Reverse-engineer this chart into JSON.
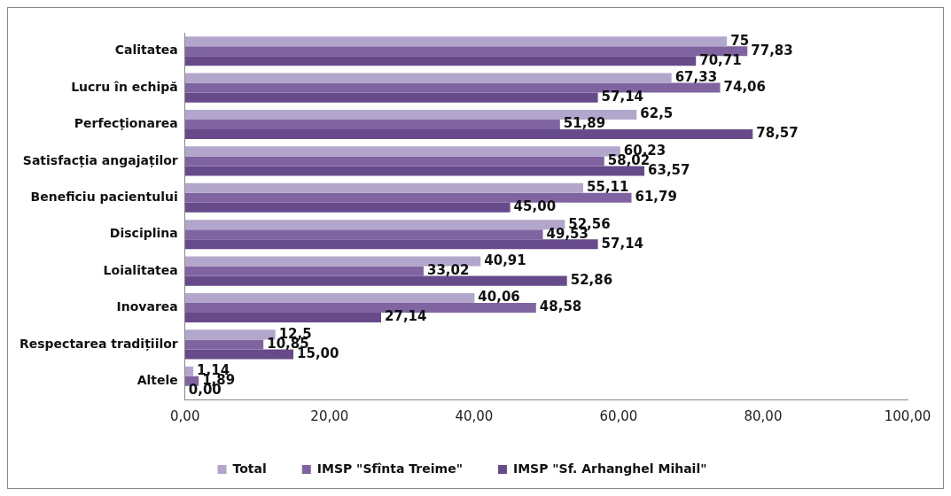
{
  "chart_data": {
    "type": "bar",
    "orientation": "horizontal",
    "categories": [
      "Calitatea",
      "Lucru în echipă",
      "Perfecționarea",
      "Satisfacția angajaților",
      "Beneficiu pacientului",
      "Disciplina",
      "Loialitatea",
      "Inovarea",
      "Respectarea tradițiilor",
      "Altele"
    ],
    "series": [
      {
        "name": "Total",
        "color": "#b3a6cc",
        "values": [
          75,
          67.33,
          62.5,
          60.23,
          55.11,
          52.56,
          40.91,
          40.06,
          12.5,
          1.14
        ],
        "value_labels": [
          "75",
          "67,33",
          "62,5",
          "60,23",
          "55,11",
          "52,56",
          "40,91",
          "40,06",
          "12,5",
          "1,14"
        ]
      },
      {
        "name": "IMSP \"Sfînta Treime\"",
        "color": "#8064a2",
        "values": [
          77.83,
          74.06,
          51.89,
          58.02,
          61.79,
          49.53,
          33.02,
          48.58,
          10.85,
          1.89
        ],
        "value_labels": [
          "77,83",
          "74,06",
          "51,89",
          "58,02",
          "61,79",
          "49,53",
          "33,02",
          "48,58",
          "10,85",
          "1,89"
        ]
      },
      {
        "name": "IMSP \"Sf. Arhanghel Mihail\"",
        "color": "#674a8a",
        "values": [
          70.71,
          57.14,
          78.57,
          63.57,
          45.0,
          57.14,
          52.86,
          27.14,
          15.0,
          0.0
        ],
        "value_labels": [
          "70,71",
          "57,14",
          "78,57",
          "63,57",
          "45,00",
          "57,14",
          "52,86",
          "27,14",
          "15,00",
          "0,00"
        ]
      }
    ],
    "xlim": [
      0,
      100
    ],
    "xticks": [
      {
        "value": 0,
        "label": "0,00"
      },
      {
        "value": 20,
        "label": "20,00"
      },
      {
        "value": 40,
        "label": "40,00"
      },
      {
        "value": 60,
        "label": "60,00"
      },
      {
        "value": 80,
        "label": "80,00"
      },
      {
        "value": 100,
        "label": "100,00"
      }
    ],
    "grid": false,
    "legend": "bottom"
  }
}
